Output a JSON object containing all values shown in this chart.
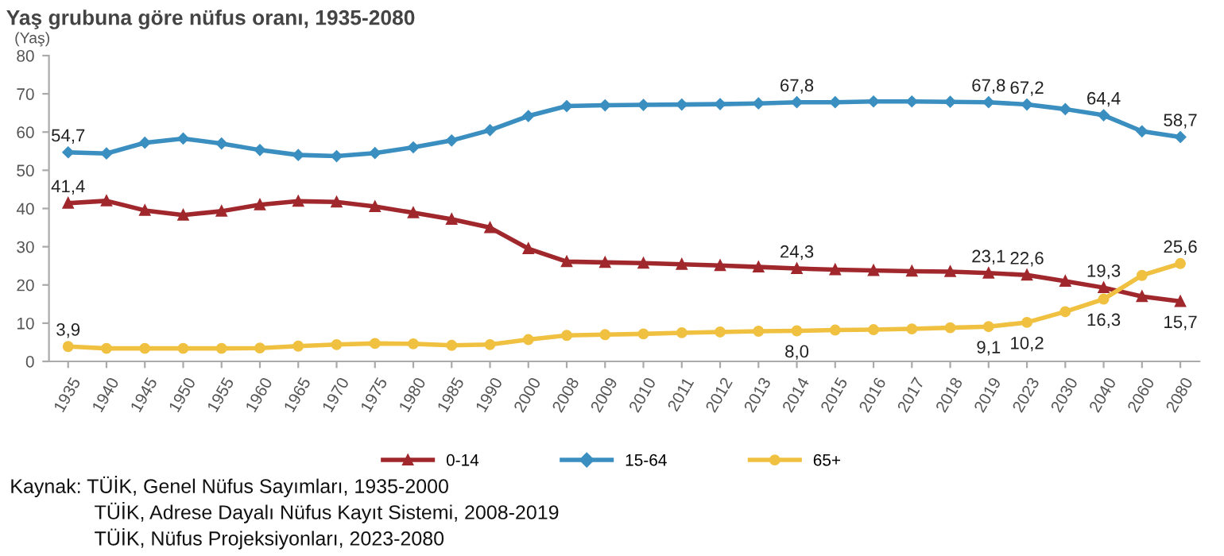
{
  "chart_data": {
    "type": "line",
    "title": "Yaş grubuna göre nüfus oranı, 1935-2080",
    "ylabel": "(Yaş)",
    "categories": [
      "1935",
      "1940",
      "1945",
      "1950",
      "1955",
      "1960",
      "1965",
      "1970",
      "1975",
      "1980",
      "1985",
      "1990",
      "2000",
      "2008",
      "2009",
      "2010",
      "2011",
      "2012",
      "2013",
      "2014",
      "2015",
      "2016",
      "2017",
      "2018",
      "2019",
      "2023",
      "2030",
      "2040",
      "2060",
      "2080"
    ],
    "series": [
      {
        "name": "0-14",
        "color": "#a0282d",
        "marker": "triangle",
        "values": [
          41.4,
          42.0,
          39.5,
          38.3,
          39.3,
          41.0,
          41.9,
          41.7,
          40.5,
          38.9,
          37.2,
          35.0,
          29.5,
          26.1,
          25.9,
          25.7,
          25.4,
          25.1,
          24.7,
          24.3,
          24.0,
          23.8,
          23.6,
          23.5,
          23.1,
          22.6,
          21.0,
          19.3,
          17.0,
          15.7
        ],
        "value_labels": [
          "41,4",
          null,
          null,
          null,
          null,
          null,
          null,
          null,
          null,
          null,
          null,
          null,
          null,
          null,
          null,
          null,
          null,
          null,
          null,
          "24,3",
          null,
          null,
          null,
          null,
          "23,1",
          "22,6",
          null,
          "19,3",
          null,
          "15,7"
        ]
      },
      {
        "name": "15-64",
        "color": "#3a8fc0",
        "marker": "diamond",
        "values": [
          54.7,
          54.4,
          57.2,
          58.3,
          57.0,
          55.3,
          54.0,
          53.7,
          54.5,
          56.0,
          57.8,
          60.5,
          64.2,
          66.8,
          67.0,
          67.1,
          67.2,
          67.3,
          67.5,
          67.8,
          67.8,
          68.0,
          68.0,
          67.9,
          67.8,
          67.2,
          66.0,
          64.4,
          60.2,
          58.7
        ],
        "value_labels": [
          "54,7",
          null,
          null,
          null,
          null,
          null,
          null,
          null,
          null,
          null,
          null,
          null,
          null,
          null,
          null,
          null,
          null,
          null,
          null,
          "67,8",
          null,
          null,
          null,
          null,
          "67,8",
          "67,2",
          null,
          "64,4",
          null,
          "58,7"
        ]
      },
      {
        "name": "65+",
        "color": "#f0c040",
        "marker": "circle",
        "values": [
          3.9,
          3.4,
          3.4,
          3.4,
          3.4,
          3.5,
          4.0,
          4.4,
          4.7,
          4.6,
          4.2,
          4.4,
          5.7,
          6.8,
          7.0,
          7.2,
          7.5,
          7.7,
          7.9,
          8.0,
          8.2,
          8.3,
          8.5,
          8.8,
          9.1,
          10.2,
          13.0,
          16.3,
          22.5,
          25.6
        ],
        "value_labels": [
          "3,9",
          null,
          null,
          null,
          null,
          null,
          null,
          null,
          null,
          null,
          null,
          null,
          null,
          null,
          null,
          null,
          null,
          null,
          null,
          "8,0",
          null,
          null,
          null,
          null,
          "9,1",
          "10,2",
          null,
          "16,3",
          null,
          "25,6"
        ]
      }
    ],
    "ylim": [
      0,
      80
    ],
    "yticks": [
      0,
      10,
      20,
      30,
      40,
      50,
      60,
      70,
      80
    ],
    "grid": false,
    "legend": "bottom",
    "line_style": "solid",
    "annotations": [
      "Kaynak: TÜİK, Genel Nüfus Sayımları, 1935-2000",
      "TÜİK, Adrese Dayalı Nüfus Kayıt Sistemi, 2008-2019",
      "TÜİK, Nüfus Projeksiyonları, 2023-2080"
    ]
  }
}
